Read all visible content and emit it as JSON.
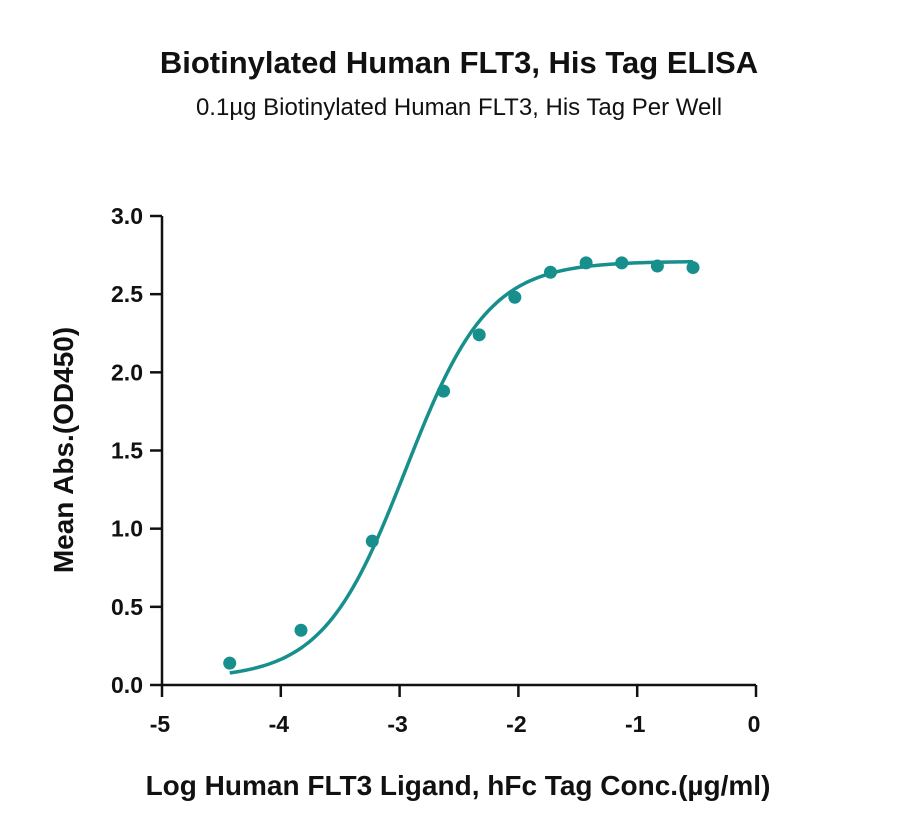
{
  "chart_data": {
    "type": "scatter",
    "title": "Biotinylated Human FLT3, His Tag ELISA",
    "subtitle": "0.1µg Biotinylated Human FLT3, His Tag Per Well",
    "xlabel": "Log Human FLT3 Ligand, hFc Tag Conc.(µg/ml)",
    "ylabel": "Mean Abs.(OD450)",
    "xlim": [
      -5,
      0
    ],
    "ylim": [
      0,
      3.0
    ],
    "x_ticks": [
      "-5",
      "-4",
      "-3",
      "-2",
      "-1",
      "0"
    ],
    "y_ticks": [
      "0.0",
      "0.5",
      "1.0",
      "1.5",
      "2.0",
      "2.5",
      "3.0"
    ],
    "x_tick_values": [
      -5,
      -4,
      -3,
      -2,
      -1,
      0
    ],
    "y_tick_values": [
      0,
      0.5,
      1.0,
      1.5,
      2.0,
      2.5,
      3.0
    ],
    "grid": false,
    "series": [
      {
        "x": [
          -4.43,
          -3.83,
          -3.23,
          -2.63,
          -2.33,
          -2.03,
          -1.73,
          -1.43,
          -1.13,
          -0.83,
          -0.53
        ],
        "y": [
          0.14,
          0.35,
          0.92,
          1.88,
          2.24,
          2.48,
          2.64,
          2.7,
          2.7,
          2.68,
          2.67
        ],
        "color": "#178f8c",
        "fit": "four-parameter-logistic",
        "fit_params": {
          "bottom": 0.04,
          "top": 2.71,
          "logEC50": -2.95,
          "hill": 1.25
        }
      }
    ]
  }
}
